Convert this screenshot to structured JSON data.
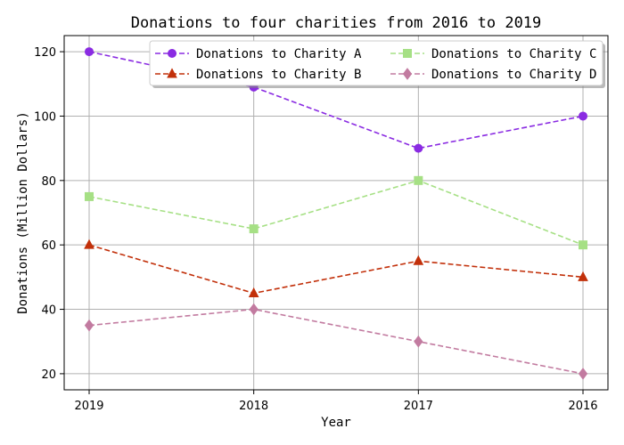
{
  "chart_data": {
    "type": "line",
    "title": "Donations to four charities from 2016 to 2019",
    "xlabel": "Year",
    "ylabel": "Donations (Million Dollars)",
    "categories": [
      "2019",
      "2018",
      "2017",
      "2016"
    ],
    "ylim": [
      15,
      125
    ],
    "yticks": [
      20,
      40,
      60,
      80,
      100,
      120
    ],
    "grid": true,
    "legend_position": "top-right",
    "series": [
      {
        "name": "Donations to Charity A",
        "values": [
          120,
          109,
          90,
          100
        ],
        "color": "#8a2be2",
        "marker": "circle",
        "line_style": "dashed"
      },
      {
        "name": "Donations to Charity B",
        "values": [
          60,
          45,
          55,
          50
        ],
        "color": "#c2300a",
        "marker": "triangle",
        "line_style": "dashed"
      },
      {
        "name": "Donations to Charity C",
        "values": [
          75,
          65,
          80,
          60
        ],
        "color": "#a6e085",
        "marker": "square",
        "line_style": "dashed"
      },
      {
        "name": "Donations to Charity D",
        "values": [
          35,
          40,
          30,
          20
        ],
        "color": "#c27ba0",
        "marker": "diamond",
        "line_style": "dashed"
      }
    ]
  }
}
